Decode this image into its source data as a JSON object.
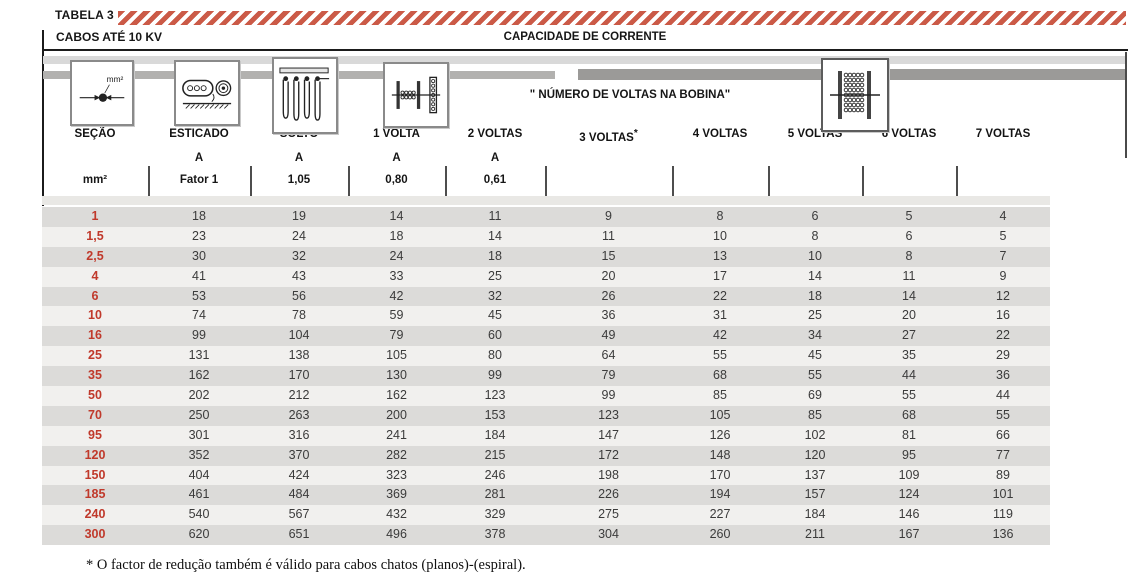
{
  "title": "TABELA 3",
  "header": {
    "left": "CABOS ATÉ 10 KV",
    "center": "CAPACIDADE DE CORRENTE",
    "bobbin_note": "\" NÚMERO DE VOLTAS NA BOBINA\""
  },
  "columns": [
    {
      "label": "SEÇÃO",
      "unit": "",
      "factor": "mm²"
    },
    {
      "label": "ESTICADO",
      "unit": "A",
      "factor": "Fator 1"
    },
    {
      "label": "SOLTO",
      "unit": "A",
      "factor": "1,05"
    },
    {
      "label": "1 VOLTA",
      "unit": "A",
      "factor": "0,80"
    },
    {
      "label": "2 VOLTAS",
      "unit": "A",
      "factor": "0,61"
    },
    {
      "label": "3 VOLTAS",
      "sup": "*",
      "unit": "",
      "factor": ""
    },
    {
      "label": "4 VOLTAS",
      "unit": "",
      "factor": ""
    },
    {
      "label": "5 VOLTAS",
      "unit": "",
      "factor": ""
    },
    {
      "label": "6 VOLTAS",
      "unit": "",
      "factor": ""
    },
    {
      "label": "7 VOLTAS",
      "unit": "",
      "factor": ""
    }
  ],
  "icons": [
    {
      "name": "section-icon",
      "column": "SEÇÃO",
      "caption": "mm²"
    },
    {
      "name": "stretched-cable-icon",
      "column": "ESTICADO"
    },
    {
      "name": "loose-hanging-cable-icon",
      "column": "SOLTO"
    },
    {
      "name": "single-turn-reel-icon",
      "column": "1 VOLTA"
    },
    {
      "name": "full-reel-icon",
      "column": "5 VOLTAS"
    }
  ],
  "rows": [
    {
      "secao": "1",
      "values": [
        "18",
        "19",
        "14",
        "11",
        "9",
        "8",
        "6",
        "5",
        "4"
      ]
    },
    {
      "secao": "1,5",
      "values": [
        "23",
        "24",
        "18",
        "14",
        "11",
        "10",
        "8",
        "6",
        "5"
      ]
    },
    {
      "secao": "2,5",
      "values": [
        "30",
        "32",
        "24",
        "18",
        "15",
        "13",
        "10",
        "8",
        "7"
      ]
    },
    {
      "secao": "4",
      "values": [
        "41",
        "43",
        "33",
        "25",
        "20",
        "17",
        "14",
        "11",
        "9"
      ]
    },
    {
      "secao": "6",
      "values": [
        "53",
        "56",
        "42",
        "32",
        "26",
        "22",
        "18",
        "14",
        "12"
      ]
    },
    {
      "secao": "10",
      "values": [
        "74",
        "78",
        "59",
        "45",
        "36",
        "31",
        "25",
        "20",
        "16"
      ]
    },
    {
      "secao": "16",
      "values": [
        "99",
        "104",
        "79",
        "60",
        "49",
        "42",
        "34",
        "27",
        "22"
      ]
    },
    {
      "secao": "25",
      "values": [
        "131",
        "138",
        "105",
        "80",
        "64",
        "55",
        "45",
        "35",
        "29"
      ]
    },
    {
      "secao": "35",
      "values": [
        "162",
        "170",
        "130",
        "99",
        "79",
        "68",
        "55",
        "44",
        "36"
      ]
    },
    {
      "secao": "50",
      "values": [
        "202",
        "212",
        "162",
        "123",
        "99",
        "85",
        "69",
        "55",
        "44"
      ]
    },
    {
      "secao": "70",
      "values": [
        "250",
        "263",
        "200",
        "153",
        "123",
        "105",
        "85",
        "68",
        "55"
      ]
    },
    {
      "secao": "95",
      "values": [
        "301",
        "316",
        "241",
        "184",
        "147",
        "126",
        "102",
        "81",
        "66"
      ]
    },
    {
      "secao": "120",
      "values": [
        "352",
        "370",
        "282",
        "215",
        "172",
        "148",
        "120",
        "95",
        "77"
      ]
    },
    {
      "secao": "150",
      "values": [
        "404",
        "424",
        "323",
        "246",
        "198",
        "170",
        "137",
        "109",
        "89"
      ]
    },
    {
      "secao": "185",
      "values": [
        "461",
        "484",
        "369",
        "281",
        "226",
        "194",
        "157",
        "124",
        "101"
      ]
    },
    {
      "secao": "240",
      "values": [
        "540",
        "567",
        "432",
        "329",
        "275",
        "227",
        "184",
        "146",
        "119"
      ]
    },
    {
      "secao": "300",
      "values": [
        "620",
        "651",
        "496",
        "378",
        "304",
        "260",
        "211",
        "167",
        "136"
      ]
    }
  ],
  "footnote": "* O factor de redução também é válido para cabos chatos (planos)-(espiral).",
  "colors": {
    "section_red": "#c0392b",
    "hatch_red": "#cb5a47",
    "row_dark": "#dcdbd9",
    "row_light": "#f1f0ee",
    "bar_light": "#d9d9d9",
    "bar_dark": "#9b9a98"
  }
}
